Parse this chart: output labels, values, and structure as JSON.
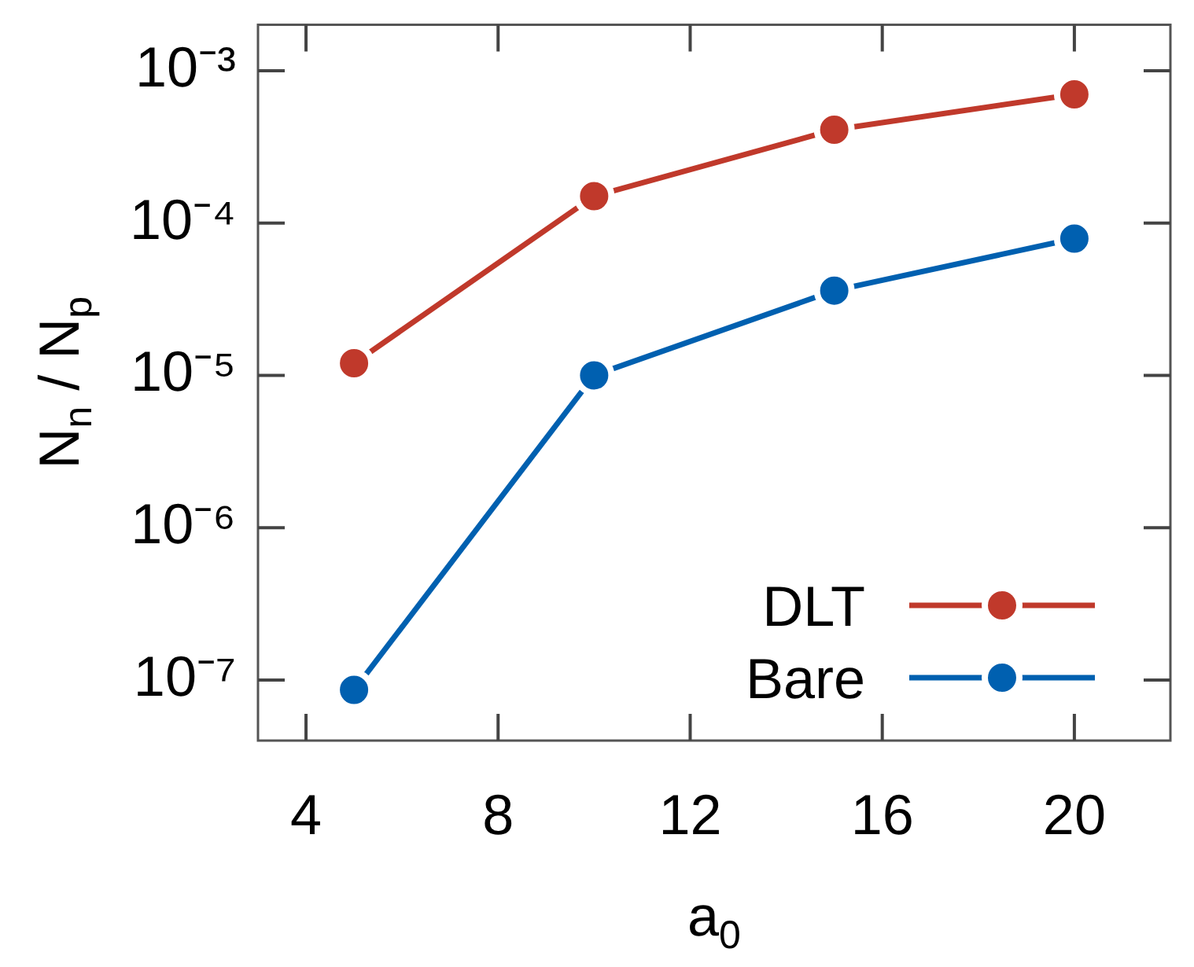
{
  "chart_data": {
    "type": "line",
    "xlabel": "a$_{0}$",
    "ylabel": "N$_{n}$ / N$_{p}$",
    "x": [
      5,
      10,
      15,
      20
    ],
    "series": [
      {
        "name": "DLT",
        "color": "#c0392b",
        "values": [
          1.2e-05,
          0.00015,
          0.00041,
          0.0007
        ]
      },
      {
        "name": "Bare",
        "color": "#0060b0",
        "values": [
          8.6e-08,
          1e-05,
          3.6e-05,
          7.9e-05
        ]
      }
    ],
    "log": "y",
    "xlim": [
      3,
      22
    ],
    "xticks": [
      4,
      8,
      12,
      16,
      20
    ],
    "ylim": [
      4e-08,
      0.002
    ],
    "yticks": [
      {
        "value": 1e-07,
        "label": "10⁻⁷"
      },
      {
        "value": 1e-06,
        "label": "10⁻⁶"
      },
      {
        "value": 1e-05,
        "label": "10⁻⁵"
      },
      {
        "value": 0.0001,
        "label": "10⁻⁴"
      },
      {
        "value": 0.001,
        "label": "10⁻³"
      }
    ],
    "grid": false,
    "legend": "bottom right",
    "marker": "circle",
    "line_style": "solid"
  }
}
